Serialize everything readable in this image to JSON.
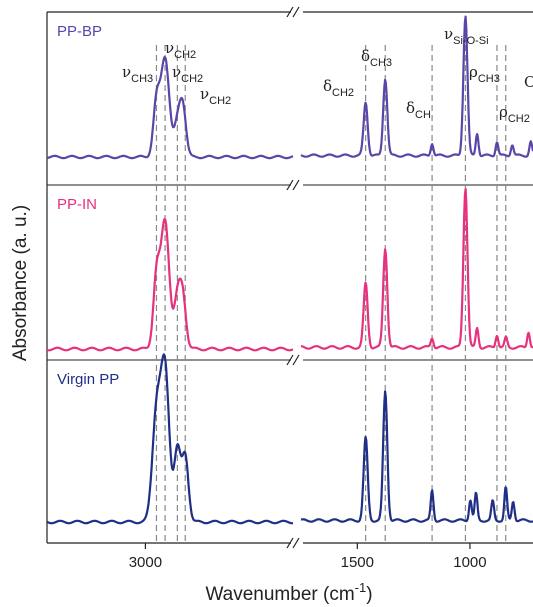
{
  "chart_data": {
    "type": "line",
    "xlabel": "Wavenumber (cm",
    "xlabel_sup": "-1",
    "xlabel_close": ")",
    "ylabel": "Absorbance (a. u.)",
    "axis_break": true,
    "x_segments": [
      {
        "xlim": [
          3400,
          2400
        ],
        "ticks": [
          3000
        ]
      },
      {
        "xlim": [
          1750,
          720
        ],
        "ticks": [
          1500,
          1000
        ]
      }
    ],
    "x_tick_labels": [
      "3000",
      "1500",
      "1000"
    ],
    "grid": false,
    "colors": {
      "PP-BP": "#5B45A8",
      "PP-IN": "#E6317E",
      "Virgin PP": "#1F2F86",
      "guide": "#888888"
    },
    "series": [
      {
        "name": "PP-BP",
        "peaks": [
          [
            2955,
            0.38
          ],
          [
            2920,
            0.71
          ],
          [
            2870,
            0.22
          ],
          [
            2848,
            0.36
          ],
          [
            1463,
            0.38
          ],
          [
            1376,
            0.55
          ],
          [
            1168,
            0.09
          ],
          [
            1020,
            1.0
          ],
          [
            968,
            0.16
          ],
          [
            880,
            0.1
          ],
          [
            812,
            0.08
          ],
          [
            730,
            0.1
          ]
        ]
      },
      {
        "name": "PP-IN",
        "peaks": [
          [
            2955,
            0.44
          ],
          [
            2920,
            0.8
          ],
          [
            2870,
            0.3
          ],
          [
            2848,
            0.32
          ],
          [
            1463,
            0.4
          ],
          [
            1376,
            0.62
          ],
          [
            1168,
            0.06
          ],
          [
            1020,
            1.0
          ],
          [
            968,
            0.12
          ],
          [
            880,
            0.08
          ],
          [
            840,
            0.06
          ],
          [
            740,
            0.1
          ]
        ]
      },
      {
        "name": "Virgin PP",
        "peaks": [
          [
            2955,
            0.72
          ],
          [
            2920,
            1.0
          ],
          [
            2870,
            0.48
          ],
          [
            2838,
            0.44
          ],
          [
            1463,
            0.55
          ],
          [
            1376,
            0.86
          ],
          [
            1168,
            0.2
          ],
          [
            998,
            0.14
          ],
          [
            973,
            0.18
          ],
          [
            899,
            0.13
          ],
          [
            841,
            0.22
          ],
          [
            808,
            0.13
          ]
        ]
      }
    ],
    "annotations": [
      {
        "symbol": "ν",
        "sub": "CH3",
        "wavenumber": 2955
      },
      {
        "symbol": "ν",
        "sub": "CH2",
        "wavenumber": 2920
      },
      {
        "symbol": "ν",
        "sub": "CH2",
        "wavenumber": 2870
      },
      {
        "symbol": "ν",
        "sub": "CH2",
        "wavenumber": 2848
      },
      {
        "symbol": "δ",
        "sub": "CH2",
        "wavenumber": 1463
      },
      {
        "symbol": "δ",
        "sub": "CH3",
        "wavenumber": 1376
      },
      {
        "symbol": "δ",
        "sub": "CH",
        "wavenumber": 1168
      },
      {
        "symbol": "ν",
        "sub": "Si-O-Si",
        "wavenumber": 1020
      },
      {
        "symbol": "ρ",
        "sub": "CH3",
        "wavenumber": 880
      },
      {
        "symbol": "ρ",
        "sub": "CH2",
        "wavenumber": 841
      },
      {
        "symbol": "O",
        "sub": "",
        "wavenumber": 735
      }
    ]
  }
}
